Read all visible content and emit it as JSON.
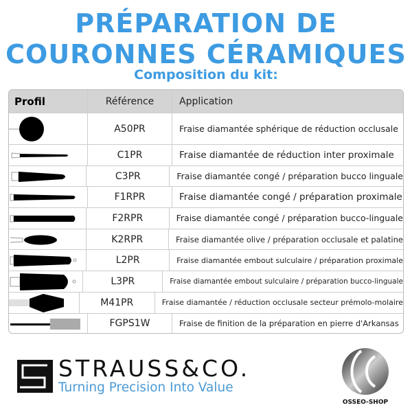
{
  "title": {
    "line1": "PRÉPARATION DE",
    "line2": "COURONNES CÉRAMIQUES",
    "subtitle": "Composition du kit:"
  },
  "table": {
    "headers": [
      "Profil",
      "Référence",
      "Application"
    ],
    "rows": [
      {
        "profile": "spherical",
        "reference": "A50PR",
        "application": "Fraise diamantée sphérique de réduction occlusale"
      },
      {
        "profile": "thin-cone",
        "reference": "C1PR",
        "application": "Fraise diamantée de réduction inter proximale"
      },
      {
        "profile": "cone",
        "reference": "C3PR",
        "application": "Fraise diamantée congé / préparation bucco linguale"
      },
      {
        "profile": "long-cone",
        "reference": "F1RPR",
        "application": "Fraise diamantée congé / préparation proximale"
      },
      {
        "profile": "long-cylinder",
        "reference": "F2RPR",
        "application": "Fraise diamantée congé / préparation bucco-linguale"
      },
      {
        "profile": "olive",
        "reference": "K2RPR",
        "application": "Fraise diamantée olive / préparation occlusale et palatine"
      },
      {
        "profile": "guided-cone",
        "reference": "L2PR",
        "application": "Fraise diamantée embout sulculaire / préparation proximale"
      },
      {
        "profile": "guided-wide",
        "reference": "L3PR",
        "application": "Fraise diamantée embout sulculaire / préparation bucco-linguale"
      },
      {
        "profile": "hexagonal",
        "reference": "M41PR",
        "application": "Fraise diamantée / réduction occlusale secteur prémolo-molaire"
      },
      {
        "profile": "stone",
        "reference": "FGPS1W",
        "application": "Fraise de finition de la préparation en pierre d'Arkansas"
      }
    ]
  },
  "footer": {
    "brand": "STRAUSS&CO.",
    "tagline": "Turning Precision Into Value",
    "partner": "OSSEO-SHOP"
  },
  "colors": {
    "title": "#3d9be2",
    "tagline": "#4b9ad6",
    "header_bg": "#d4d4d4"
  }
}
